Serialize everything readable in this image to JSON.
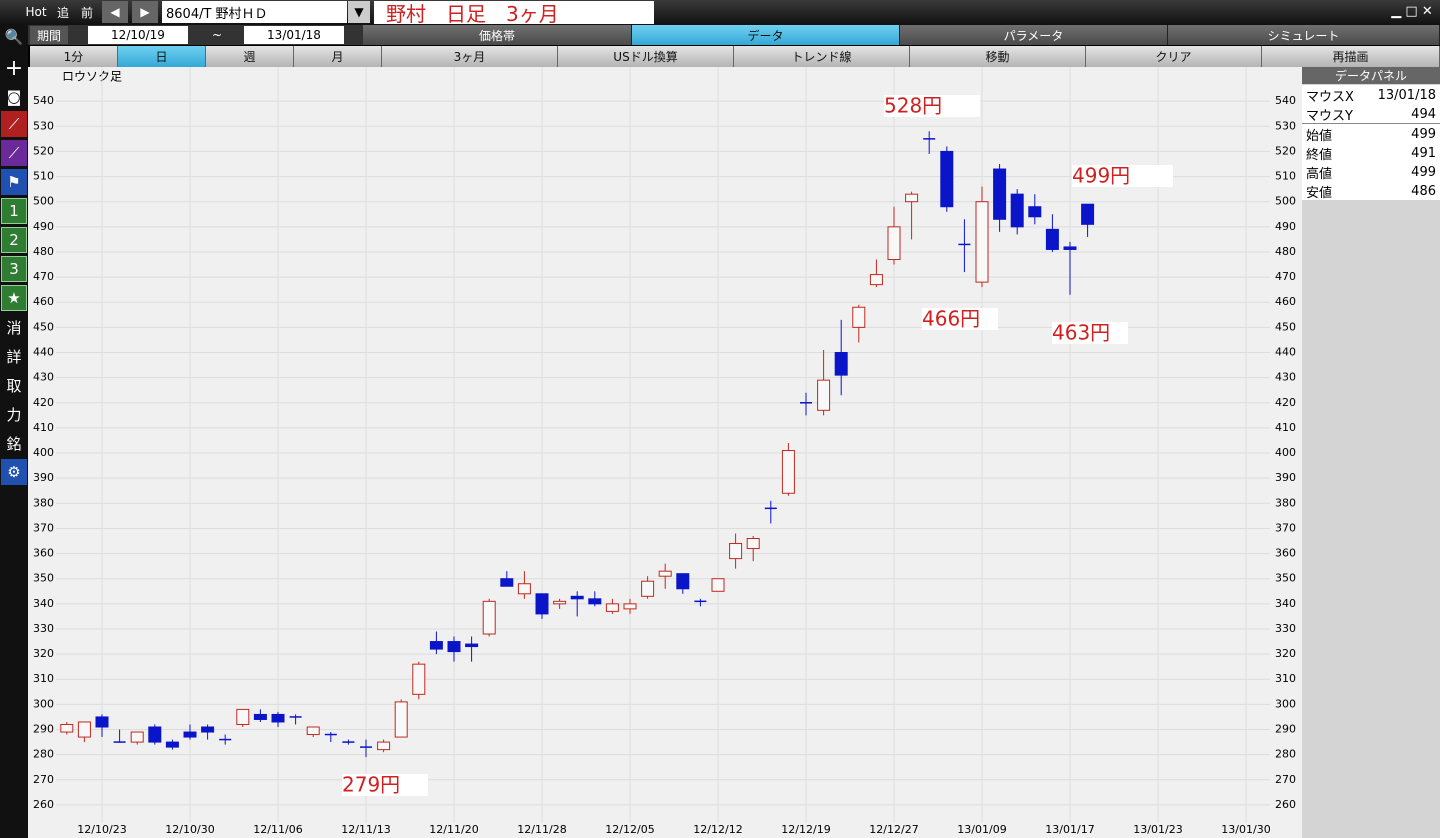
{
  "toolbar": {
    "hot": "Hot",
    "add": "追",
    "prev": "前",
    "symbol": "8604/T 野村ＨＤ",
    "title": "野村　日足　3ヶ月"
  },
  "period": {
    "label": "期間",
    "from": "12/10/19",
    "sep": "~",
    "to": "13/01/18"
  },
  "tabs": [
    "価格帯",
    "データ",
    "パラメータ",
    "シミュレート"
  ],
  "buttons": [
    "1分",
    "日",
    "週",
    "月",
    "3ヶ月",
    "USドル換算",
    "トレンド線",
    "移動",
    "クリア",
    "再描画"
  ],
  "sidebar": [
    "1",
    "2",
    "3",
    "消",
    "詳",
    "取",
    "力",
    "銘"
  ],
  "data_panel": {
    "title": "データパネル",
    "rows": [
      [
        "マウスX",
        "13/01/18"
      ],
      [
        "マウスY",
        494
      ],
      [
        "始値",
        499
      ],
      [
        "終値",
        491
      ],
      [
        "高値",
        499
      ],
      [
        "安値",
        486
      ]
    ]
  },
  "chart_data": {
    "type": "candlestick",
    "title": "ロウソク足",
    "categories": [
      null,
      null,
      "12/10/23",
      null,
      null,
      null,
      null,
      "12/10/30",
      null,
      null,
      null,
      null,
      "12/11/06",
      null,
      null,
      null,
      null,
      "12/11/13",
      null,
      null,
      null,
      null,
      "12/11/20",
      null,
      null,
      null,
      null,
      "12/11/28",
      null,
      null,
      null,
      null,
      "12/12/05",
      null,
      null,
      null,
      null,
      "12/12/12",
      null,
      null,
      null,
      null,
      "12/12/19",
      null,
      null,
      null,
      null,
      "12/12/27",
      null,
      null,
      null,
      null,
      "13/01/09",
      null,
      null,
      null,
      null,
      "13/01/17",
      null,
      null,
      null,
      null,
      "13/01/23",
      null,
      null,
      null,
      null,
      "13/01/30"
    ],
    "open": [
      289,
      287,
      295,
      285,
      285,
      291,
      285,
      289,
      291,
      286,
      292,
      296,
      296,
      295,
      288,
      288,
      285,
      283,
      282,
      287,
      304,
      325,
      325,
      324,
      328,
      350,
      344,
      344,
      340,
      343,
      342,
      337,
      338,
      343,
      351,
      352,
      341,
      345,
      358,
      362,
      378,
      384,
      420,
      417,
      440,
      450,
      467,
      477,
      500,
      525,
      520,
      483,
      468,
      513,
      503,
      498,
      489,
      482,
      499,
      null,
      null,
      null,
      null,
      null,
      null,
      null,
      null,
      null
    ],
    "high": [
      293,
      293,
      296,
      290,
      289,
      292,
      286,
      292,
      292,
      288,
      298,
      298,
      297,
      296,
      291,
      289,
      286,
      286,
      286,
      302,
      317,
      329,
      327,
      327,
      342,
      353,
      353,
      344,
      342,
      345,
      345,
      342,
      342,
      351,
      356,
      352,
      342,
      350,
      368,
      367,
      381,
      404,
      424,
      441,
      453,
      459,
      477,
      498,
      504,
      528,
      522,
      493,
      506,
      515,
      505,
      503,
      495,
      484,
      499,
      null,
      null,
      null,
      null,
      null,
      null,
      null,
      null,
      null
    ],
    "low": [
      288,
      285,
      287,
      285,
      284,
      284,
      282,
      286,
      286,
      284,
      291,
      293,
      291,
      292,
      287,
      285,
      284,
      279,
      281,
      287,
      302,
      320,
      317,
      317,
      327,
      347,
      342,
      334,
      338,
      335,
      339,
      336,
      336,
      342,
      346,
      344,
      339,
      345,
      354,
      357,
      372,
      383,
      415,
      415,
      423,
      444,
      466,
      475,
      485,
      519,
      496,
      472,
      466,
      488,
      487,
      491,
      480,
      463,
      486,
      null,
      null,
      null,
      null,
      null,
      null,
      null,
      null,
      null
    ],
    "close": [
      292,
      293,
      291,
      285,
      289,
      285,
      283,
      287,
      289,
      286,
      298,
      294,
      293,
      295,
      291,
      288,
      285,
      283,
      285,
      301,
      316,
      322,
      321,
      323,
      341,
      347,
      348,
      336,
      341,
      342,
      340,
      340,
      340,
      349,
      353,
      346,
      341,
      350,
      364,
      366,
      378,
      401,
      420,
      429,
      431,
      458,
      471,
      490,
      503,
      525,
      498,
      483,
      500,
      493,
      490,
      494,
      481,
      481,
      491,
      null,
      null,
      null,
      null,
      null,
      null,
      null,
      null,
      null
    ],
    "up_color": "#c0281e",
    "down_color": "#0a14c8",
    "ylim": [
      254,
      552
    ],
    "yticks": [
      260,
      270,
      280,
      290,
      300,
      310,
      320,
      330,
      340,
      350,
      360,
      370,
      380,
      390,
      400,
      410,
      420,
      430,
      440,
      450,
      460,
      470,
      480,
      490,
      500,
      510,
      520,
      530,
      540
    ],
    "grid": true,
    "annotations": [
      "528円",
      "499円",
      "466円",
      "463円",
      "279円"
    ]
  }
}
